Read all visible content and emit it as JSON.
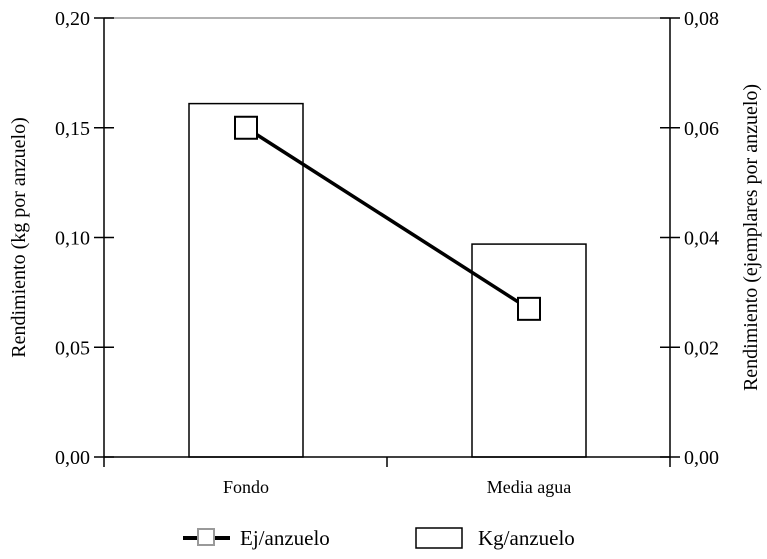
{
  "chart_data": {
    "type": "bar",
    "categories": [
      "Fondo",
      "Media agua"
    ],
    "series": [
      {
        "name": "Kg/anzuelo",
        "type": "bar",
        "axis": "left",
        "values": [
          0.161,
          0.097
        ],
        "fill": "#ffffff",
        "stroke": "#000000"
      },
      {
        "name": "Ej/anzuelo",
        "type": "line",
        "axis": "right",
        "values": [
          0.06,
          0.027
        ],
        "line_color": "#000000",
        "marker_color": "#000000",
        "legend_marker_color": "#999999"
      }
    ],
    "y_left": {
      "label": "Rendimiento (kg por anzuelo)",
      "ylim": [
        0,
        0.2
      ],
      "ticks": [
        0.0,
        0.05,
        0.1,
        0.15,
        0.2
      ],
      "tick_labels": [
        "0,00",
        "0,05",
        "0,10",
        "0,15",
        "0,20"
      ]
    },
    "y_right": {
      "label": "Rendimiento (ejemplares por anzuelo)",
      "ylim": [
        0,
        0.08
      ],
      "ticks": [
        0.0,
        0.02,
        0.04,
        0.06,
        0.08
      ],
      "tick_labels": [
        "0,00",
        "0,02",
        "0,04",
        "0,06",
        "0,08"
      ]
    },
    "xlabel": "",
    "grid": false,
    "legend": {
      "position": "bottom",
      "entries": [
        "Ej/anzuelo",
        "Kg/anzuelo"
      ]
    },
    "colors": {
      "axis": "#000000",
      "top_border": "#999999",
      "background": "#ffffff"
    }
  }
}
